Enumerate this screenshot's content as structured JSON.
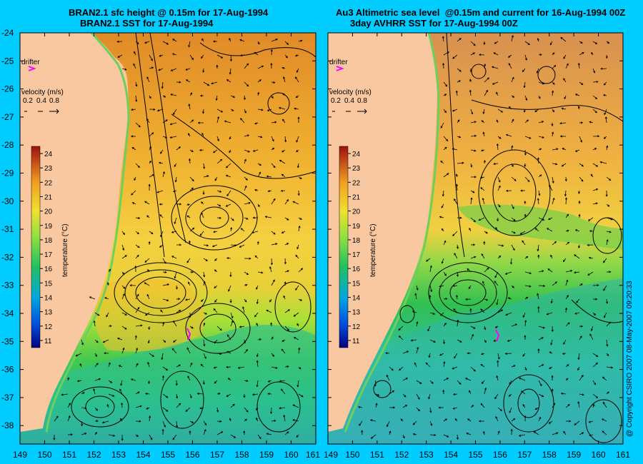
{
  "panels": [
    {
      "title_line1": "BRAN2.1 sfc height @ 0.15m for 17-Aug-1994",
      "title_line2": "BRAN2.1 SST for 17-Aug-1994"
    },
    {
      "title_line1": "Au3 Altimetric sea level  @0.15m and current for 16-Aug-1994 00Z",
      "title_line2": "3day AVHRR SST for 17-Aug-1994 00Z"
    }
  ],
  "legend": {
    "drifter_label": "drifter",
    "velocity_label": "velocity (m/s)",
    "velocity_scale": [
      "0.2",
      "0.4",
      "0.8"
    ],
    "colorbar_label": "temperature (°C)",
    "colorbar_values": [
      11,
      12,
      13,
      14,
      15,
      16,
      17,
      18,
      19,
      20,
      21,
      22,
      23,
      24
    ],
    "colors": {
      "land": "#fac8a0",
      "background": "#00ccff",
      "drifter": "#ff00ff"
    }
  },
  "axes": {
    "lon_ticks": [
      149,
      150,
      151,
      152,
      153,
      154,
      155,
      156,
      157,
      158,
      159,
      160,
      161
    ],
    "lat_ticks": [
      -24,
      -25,
      -26,
      -27,
      -28,
      -29,
      -30,
      -31,
      -32,
      -33,
      -34,
      -35,
      -36,
      -37,
      -38
    ]
  },
  "copyright": "@ Copyright CSIRO 2007  08-May-2007 09:20:33"
}
